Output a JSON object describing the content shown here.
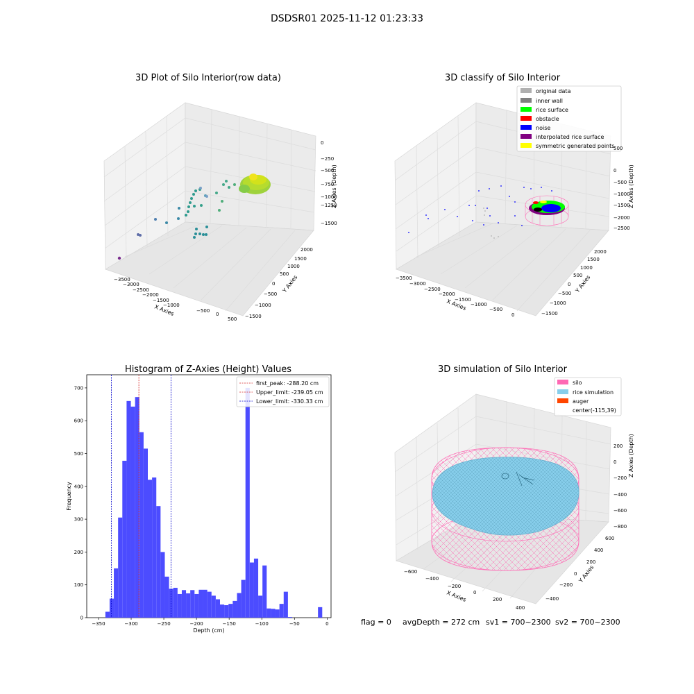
{
  "suptitle": "DSDSR01 2025-11-12 01:23:33",
  "colors": {
    "hist_bar": "#4c4cff",
    "peak_line": "#d62728",
    "limit_line": "#0000cc",
    "pane": "#f2f2f2",
    "grid": "#d9d9d9",
    "silo": "#ff69b4",
    "rice_sim": "#87ceeb",
    "auger": "#ff4500",
    "original": "#b0b0b0",
    "inner_wall": "#808080",
    "rice_surface": "#00ff00",
    "obstacle": "#ff0000",
    "noise": "#0000ff",
    "interp": "#800080",
    "symmetric": "#ffff00"
  },
  "raw_plot": {
    "title": "3D Plot of Silo Interior(row data)",
    "xlabel": "X Axies",
    "ylabel": "Y Axies",
    "zlabel": "Z Axies (Depth)",
    "x_ticks": [
      "−3500",
      "−3000",
      "−2500",
      "−2000",
      "−1500",
      "−1000",
      "−500",
      "0",
      "500"
    ],
    "y_ticks": [
      "−1500",
      "−1000",
      "−500",
      "0",
      "500",
      "1000",
      "1500",
      "2000"
    ],
    "z_ticks": [
      "−1500",
      "−1250",
      "−1000",
      "−750",
      "−500",
      "−250",
      "0"
    ]
  },
  "classify_plot": {
    "title": "3D classify of Silo Interior",
    "xlabel": "X Axies",
    "ylabel": "Y Axies",
    "zlabel": "Z Axies (Depth)",
    "x_ticks": [
      "−3500",
      "−3000",
      "−2500",
      "−2000",
      "−1500",
      "−1000",
      "−500",
      "0"
    ],
    "y_ticks": [
      "−1500",
      "−1000",
      "−500",
      "0",
      "500",
      "1000",
      "1500",
      "2000"
    ],
    "z_ticks": [
      "−2500",
      "−2000",
      "−1500",
      "−1000",
      "−500",
      "0",
      "500"
    ],
    "legend": [
      {
        "label": "original data",
        "color": "#b0b0b0"
      },
      {
        "label": "inner wall",
        "color": "#808080"
      },
      {
        "label": "rice surface",
        "color": "#00ff00"
      },
      {
        "label": "obstacle",
        "color": "#ff0000"
      },
      {
        "label": "noise",
        "color": "#0000ff"
      },
      {
        "label": "interpolated rice surface",
        "color": "#800080"
      },
      {
        "label": "symmetric generated points",
        "color": "#ffff00"
      }
    ]
  },
  "sim_plot": {
    "title": "3D simulation of Silo Interior",
    "xlabel": "X Axies",
    "ylabel": "Y Axies",
    "zlabel": "Z Axies (Depth)",
    "x_ticks": [
      "−600",
      "−400",
      "−200",
      "0",
      "200",
      "400"
    ],
    "y_ticks": [
      "−400",
      "−200",
      "0",
      "200",
      "400",
      "600"
    ],
    "z_ticks": [
      "−800",
      "−600",
      "−400",
      "−200",
      "0",
      "200"
    ],
    "legend": [
      {
        "label": "silo",
        "color": "#ff69b4"
      },
      {
        "label": "rice simulation",
        "color": "#87ceeb"
      },
      {
        "label": "auger",
        "color": "#ff4500"
      },
      {
        "label": "center(-115,39)",
        "color": ""
      }
    ]
  },
  "status": {
    "flag": "flag = 0",
    "avg": "avgDepth = 272 cm",
    "sv1": "sv1 = 700~2300",
    "sv2": "sv2 = 700~2300"
  },
  "chart_data": {
    "type": "bar",
    "title": "Histogram of Z-Axies (Height) Values",
    "xlabel": "Depth (cm)",
    "ylabel": "Frequency",
    "xlim": [
      -368,
      6
    ],
    "ylim": [
      0,
      740
    ],
    "x_ticks": [
      -350,
      -300,
      -250,
      -200,
      -150,
      -100,
      -50,
      0
    ],
    "y_ticks": [
      0,
      100,
      200,
      300,
      400,
      500,
      600,
      700
    ],
    "bin_width": 6.5,
    "bins": [
      [
        -339.5,
        18
      ],
      [
        -333,
        58
      ],
      [
        -326.5,
        150
      ],
      [
        -320,
        305
      ],
      [
        -313.5,
        478
      ],
      [
        -307,
        660
      ],
      [
        -300.5,
        643
      ],
      [
        -294,
        672
      ],
      [
        -287.5,
        565
      ],
      [
        -281,
        515
      ],
      [
        -274.5,
        420
      ],
      [
        -268,
        427
      ],
      [
        -261.5,
        340
      ],
      [
        -255,
        200
      ],
      [
        -248.5,
        125
      ],
      [
        -242,
        88
      ],
      [
        -235.5,
        91
      ],
      [
        -229,
        72
      ],
      [
        -222.5,
        84
      ],
      [
        -216,
        74
      ],
      [
        -209.5,
        84
      ],
      [
        -203,
        72
      ],
      [
        -196.5,
        85
      ],
      [
        -190,
        85
      ],
      [
        -183.5,
        79
      ],
      [
        -177,
        67
      ],
      [
        -170.5,
        56
      ],
      [
        -164,
        40
      ],
      [
        -157.5,
        38
      ],
      [
        -151,
        42
      ],
      [
        -144.5,
        51
      ],
      [
        -138,
        75
      ],
      [
        -131.5,
        115
      ],
      [
        -125,
        700
      ],
      [
        -118.5,
        168
      ],
      [
        -112,
        180
      ],
      [
        -105.5,
        67
      ],
      [
        -99,
        159
      ],
      [
        -92.5,
        28
      ],
      [
        -86,
        27
      ],
      [
        -79.5,
        25
      ],
      [
        -73,
        42
      ],
      [
        -66.5,
        79
      ],
      [
        -60,
        2
      ],
      [
        -14,
        32
      ]
    ],
    "vlines": [
      {
        "label": "first_peak: -288.20 cm",
        "x": -288.2,
        "color": "#d62728"
      },
      {
        "label": "Upper_limit: -239.05 cm",
        "x": -239.05,
        "color": "#0000cc"
      },
      {
        "label": "Lower_limit: -330.33 cm",
        "x": -330.33,
        "color": "#0000cc"
      }
    ]
  }
}
